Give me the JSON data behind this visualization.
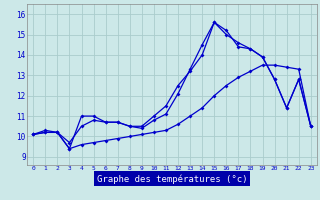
{
  "xlabel": "Graphe des températures (°c)",
  "bg_color": "#cce8e8",
  "line_color": "#0000cc",
  "grid_color": "#aacccc",
  "xlabel_bg": "#0000aa",
  "xlabel_fg": "#ffffff",
  "x_ticks": [
    0,
    1,
    2,
    3,
    4,
    5,
    6,
    7,
    8,
    9,
    10,
    11,
    12,
    13,
    14,
    15,
    16,
    17,
    18,
    19,
    20,
    21,
    22,
    23
  ],
  "y_ticks": [
    9,
    10,
    11,
    12,
    13,
    14,
    15,
    16
  ],
  "xlim": [
    -0.5,
    23.5
  ],
  "ylim": [
    8.6,
    16.5
  ],
  "line1_y": [
    10.1,
    10.3,
    10.2,
    9.7,
    10.5,
    10.8,
    10.7,
    10.7,
    10.5,
    10.5,
    11.0,
    11.5,
    12.5,
    13.2,
    14.0,
    15.6,
    15.2,
    14.4,
    14.3,
    13.9,
    12.8,
    11.4,
    12.8,
    10.5
  ],
  "line2_y": [
    10.1,
    10.2,
    10.2,
    9.4,
    11.0,
    11.0,
    10.7,
    10.7,
    10.5,
    10.4,
    10.8,
    11.1,
    12.1,
    13.3,
    14.5,
    15.6,
    15.0,
    14.6,
    14.3,
    13.9,
    12.8,
    11.4,
    12.8,
    10.5
  ],
  "line3_y": [
    10.1,
    10.2,
    10.2,
    9.4,
    9.6,
    9.7,
    9.8,
    9.9,
    10.0,
    10.1,
    10.2,
    10.3,
    10.6,
    11.0,
    11.4,
    12.0,
    12.5,
    12.9,
    13.2,
    13.5,
    13.5,
    13.4,
    13.3,
    10.5
  ]
}
